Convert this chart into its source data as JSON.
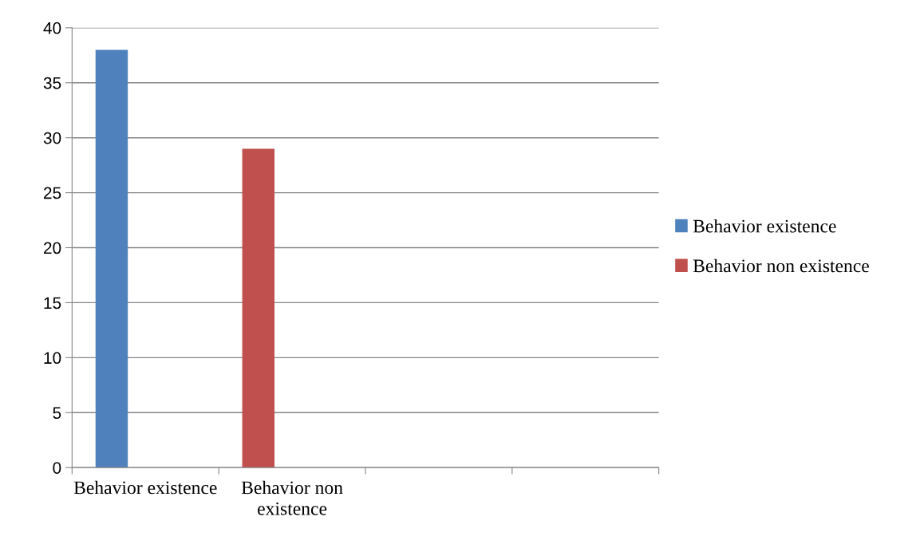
{
  "chart_data": {
    "type": "bar",
    "categories": [
      "Behavior existence",
      "Behavior non existence",
      null,
      null
    ],
    "series": [
      {
        "name": "Behavior existence",
        "color": "#4f81bd",
        "values": [
          38,
          null,
          null,
          null
        ]
      },
      {
        "name": "Behavior non existence",
        "color": "#c0504d",
        "values": [
          null,
          29,
          null,
          null
        ]
      }
    ],
    "ylim": [
      0,
      40
    ],
    "yticks": [
      0,
      5,
      10,
      15,
      20,
      25,
      30,
      35,
      40
    ],
    "grid": "y",
    "legend": "right"
  }
}
